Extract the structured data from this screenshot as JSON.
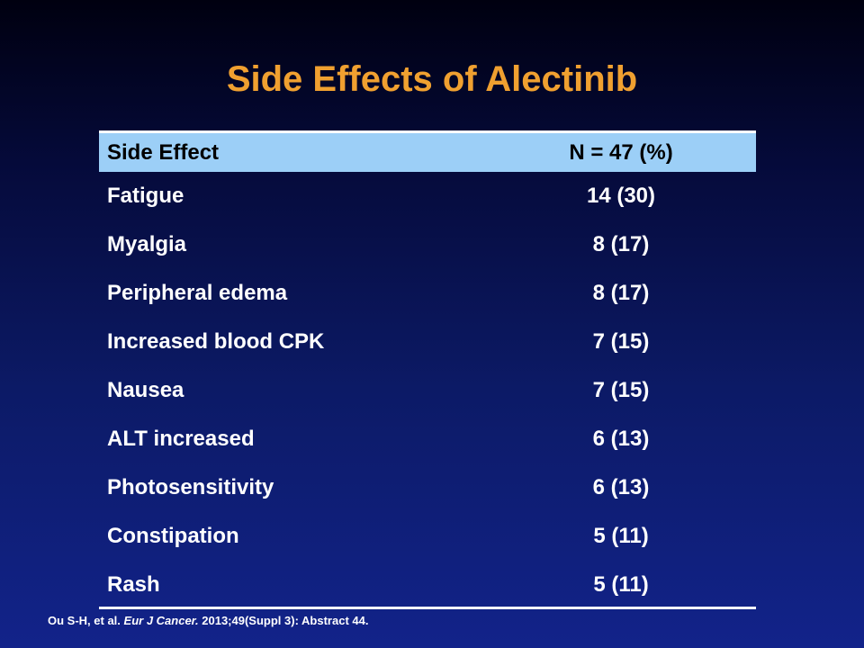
{
  "title": "Side Effects of Alectinib",
  "table": {
    "headers": [
      "Side Effect",
      "N = 47 (%)"
    ],
    "rows": [
      {
        "effect": "Fatigue",
        "value": "14 (30)"
      },
      {
        "effect": "Myalgia",
        "value": "8 (17)"
      },
      {
        "effect": "Peripheral edema",
        "value": "8 (17)"
      },
      {
        "effect": "Increased blood CPK",
        "value": "7 (15)"
      },
      {
        "effect": "Nausea",
        "value": "7 (15)"
      },
      {
        "effect": "ALT increased",
        "value": "6 (13)"
      },
      {
        "effect": "Photosensitivity",
        "value": "6 (13)"
      },
      {
        "effect": "Constipation",
        "value": "5 (11)"
      },
      {
        "effect": "Rash",
        "value": "5 (11)"
      }
    ]
  },
  "citation": {
    "authors": "Ou S-H, et al.",
    "journal": "Eur J Cancer.",
    "details": "2013;49(Suppl 3): Abstract 44."
  },
  "colors": {
    "title": "#f0a030",
    "header_bg": "#9ccff7",
    "text": "#ffffff",
    "background": "#0c1a66"
  }
}
